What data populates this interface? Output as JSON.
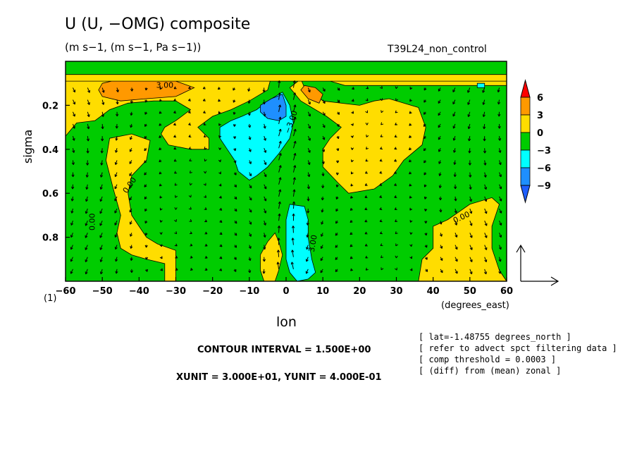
{
  "header": {
    "title": "U (U, −OMG) composite",
    "subtitle": "(m s−1, (m s−1, Pa s−1))",
    "run": "T39L24_non_control"
  },
  "figure_label": "(1)",
  "footer": {
    "contour_interval": "CONTOUR INTERVAL = 1.500E+00",
    "units_line": "XUNIT = 3.000E+01, YUNIT = 4.000E-01",
    "notes": [
      "[ lat=-1.48755 degrees_north ]",
      "[ refer to advect spct filtering data ]",
      "[ comp threshold = 0.0003 ]",
      "[ (diff) from (mean) zonal ]"
    ]
  },
  "colors": {
    "band_lt_m9": "#1f5fff",
    "band_m9_m6": "#1e8fff",
    "band_m6_m3": "#00ffff",
    "band_m3_0": "#00cc00",
    "band_0_3": "#ffdd00",
    "band_3_6": "#ff9900",
    "band_gt_6": "#ff0000"
  },
  "chart_data": {
    "type": "heatmap",
    "xlabel": "lon",
    "xunits": "(degrees_east)",
    "ylabel": "sigma",
    "xlim": [
      -60,
      60
    ],
    "ylim": [
      1.0,
      0.0
    ],
    "x_ticks": [
      "−60",
      "−50",
      "−40",
      "−30",
      "−20",
      "−10",
      "0",
      "10",
      "20",
      "30",
      "40",
      "50",
      "60"
    ],
    "y_ticks": [
      "0.2",
      "0.4",
      "0.6",
      "0.8"
    ],
    "y_tick_values": [
      0.2,
      0.4,
      0.6,
      0.8
    ],
    "colorbar": {
      "labels": [
        "6",
        "3",
        "0",
        "−3",
        "−6",
        "−9"
      ],
      "levels": [
        6,
        3,
        0,
        -3,
        -6,
        -9
      ]
    },
    "contour_labels": [
      "0.00",
      "3.00",
      "−3.00"
    ],
    "regions": [
      {
        "band": "0_3",
        "pts": [
          [
            -60,
            0.07
          ],
          [
            -60,
            0.34
          ],
          [
            -57,
            0.28
          ],
          [
            -52,
            0.27
          ],
          [
            -48,
            0.22
          ],
          [
            -43,
            0.19
          ],
          [
            -36,
            0.18
          ],
          [
            -30,
            0.18
          ],
          [
            -26,
            0.22
          ],
          [
            -30,
            0.27
          ],
          [
            -33,
            0.3
          ],
          [
            -34,
            0.33
          ],
          [
            -32,
            0.38
          ],
          [
            -26,
            0.4
          ],
          [
            -21,
            0.4
          ],
          [
            -21,
            0.35
          ],
          [
            -24,
            0.3
          ],
          [
            -20,
            0.25
          ],
          [
            -15,
            0.22
          ],
          [
            -10,
            0.18
          ],
          [
            -5,
            0.13
          ],
          [
            -4,
            0.07
          ]
        ]
      },
      {
        "band": "3_6",
        "pts": [
          [
            -50,
            0.1
          ],
          [
            -45,
            0.08
          ],
          [
            -38,
            0.08
          ],
          [
            -30,
            0.09
          ],
          [
            -25,
            0.12
          ],
          [
            -30,
            0.16
          ],
          [
            -38,
            0.17
          ],
          [
            -45,
            0.18
          ],
          [
            -50,
            0.16
          ],
          [
            -51,
            0.13
          ]
        ]
      },
      {
        "band": "0_3",
        "pts": [
          [
            -48,
            0.35
          ],
          [
            -42,
            0.33
          ],
          [
            -37,
            0.36
          ],
          [
            -38,
            0.45
          ],
          [
            -42,
            0.52
          ],
          [
            -43,
            0.6
          ],
          [
            -42,
            0.7
          ],
          [
            -40,
            0.75
          ],
          [
            -38,
            0.8
          ],
          [
            -35,
            0.83
          ],
          [
            -30,
            0.86
          ],
          [
            -30,
            0.92
          ],
          [
            -30,
            1.0
          ],
          [
            -33,
            1.0
          ],
          [
            -33,
            0.92
          ],
          [
            -38,
            0.9
          ],
          [
            -42,
            0.88
          ],
          [
            -45,
            0.85
          ],
          [
            -46,
            0.78
          ],
          [
            -45,
            0.7
          ],
          [
            -47,
            0.58
          ],
          [
            -49,
            0.45
          ]
        ]
      },
      {
        "band": "0_3",
        "pts": [
          [
            4,
            0.08
          ],
          [
            5,
            0.12
          ],
          [
            8,
            0.15
          ],
          [
            10,
            0.18
          ],
          [
            20,
            0.2
          ],
          [
            24,
            0.18
          ],
          [
            28,
            0.17
          ],
          [
            36,
            0.21
          ],
          [
            38,
            0.3
          ],
          [
            37,
            0.38
          ],
          [
            32,
            0.45
          ],
          [
            29,
            0.52
          ],
          [
            24,
            0.58
          ],
          [
            17,
            0.6
          ],
          [
            14,
            0.55
          ],
          [
            10,
            0.48
          ],
          [
            10,
            0.4
          ],
          [
            12,
            0.35
          ],
          [
            15,
            0.3
          ],
          [
            11,
            0.25
          ],
          [
            8,
            0.22
          ],
          [
            4,
            0.18
          ],
          [
            1,
            0.12
          ]
        ]
      },
      {
        "band": "3_6",
        "pts": [
          [
            5,
            0.11
          ],
          [
            8,
            0.12
          ],
          [
            10,
            0.15
          ],
          [
            9,
            0.19
          ],
          [
            6,
            0.17
          ],
          [
            4,
            0.13
          ]
        ]
      },
      {
        "band": "0_3",
        "pts": [
          [
            12,
            0.07
          ],
          [
            30,
            0.07
          ],
          [
            55,
            0.07
          ],
          [
            60,
            0.08
          ],
          [
            60,
            0.11
          ],
          [
            50,
            0.11
          ],
          [
            40,
            0.11
          ],
          [
            28,
            0.11
          ],
          [
            16,
            0.11
          ],
          [
            12,
            0.09
          ]
        ]
      },
      {
        "band": "0_3",
        "pts": [
          [
            -60,
            0.06
          ],
          [
            60,
            0.06
          ],
          [
            60,
            0.09
          ],
          [
            -60,
            0.09
          ]
        ]
      },
      {
        "band": "0_3",
        "pts": [
          [
            40,
            0.75
          ],
          [
            44,
            0.72
          ],
          [
            50,
            0.65
          ],
          [
            56,
            0.62
          ],
          [
            58,
            0.65
          ],
          [
            56,
            0.75
          ],
          [
            56,
            0.85
          ],
          [
            58,
            0.95
          ],
          [
            60,
            1.0
          ],
          [
            36,
            1.0
          ],
          [
            37,
            0.9
          ],
          [
            40,
            0.85
          ]
        ]
      },
      {
        "band": "0_3",
        "pts": [
          [
            -3,
            0.78
          ],
          [
            -2,
            0.82
          ],
          [
            -1,
            0.88
          ],
          [
            -2,
            0.95
          ],
          [
            -3,
            1.0
          ],
          [
            -6,
            1.0
          ],
          [
            -7,
            0.95
          ],
          [
            -7,
            0.88
          ],
          [
            -5,
            0.82
          ]
        ]
      },
      {
        "band": "m6_m3",
        "pts": [
          [
            -5,
            0.18
          ],
          [
            -1,
            0.14
          ],
          [
            1,
            0.2
          ],
          [
            2,
            0.28
          ],
          [
            1,
            0.35
          ],
          [
            -2,
            0.42
          ],
          [
            -5,
            0.48
          ],
          [
            -8,
            0.52
          ],
          [
            -10,
            0.54
          ],
          [
            -13,
            0.5
          ],
          [
            -14,
            0.45
          ],
          [
            -16,
            0.4
          ],
          [
            -18,
            0.35
          ],
          [
            -18,
            0.3
          ],
          [
            -15,
            0.27
          ],
          [
            -12,
            0.25
          ],
          [
            -8,
            0.22
          ]
        ]
      },
      {
        "band": "m9_m6",
        "pts": [
          [
            -4,
            0.17
          ],
          [
            -1,
            0.15
          ],
          [
            0,
            0.2
          ],
          [
            0,
            0.25
          ],
          [
            -2,
            0.27
          ],
          [
            -5,
            0.26
          ],
          [
            -7,
            0.23
          ],
          [
            -7,
            0.2
          ]
        ]
      },
      {
        "band": "m6_m3",
        "pts": [
          [
            1,
            0.65
          ],
          [
            5,
            0.66
          ],
          [
            6,
            0.72
          ],
          [
            6,
            0.8
          ],
          [
            7,
            0.9
          ],
          [
            8,
            0.96
          ],
          [
            6,
            0.99
          ],
          [
            3,
            1.0
          ],
          [
            1,
            0.96
          ],
          [
            0,
            0.9
          ],
          [
            0,
            0.8
          ],
          [
            0,
            0.72
          ]
        ]
      },
      {
        "band": "m6_m3",
        "pts": [
          [
            52,
            0.1
          ],
          [
            54,
            0.1
          ],
          [
            54,
            0.12
          ],
          [
            52,
            0.12
          ]
        ]
      }
    ]
  }
}
